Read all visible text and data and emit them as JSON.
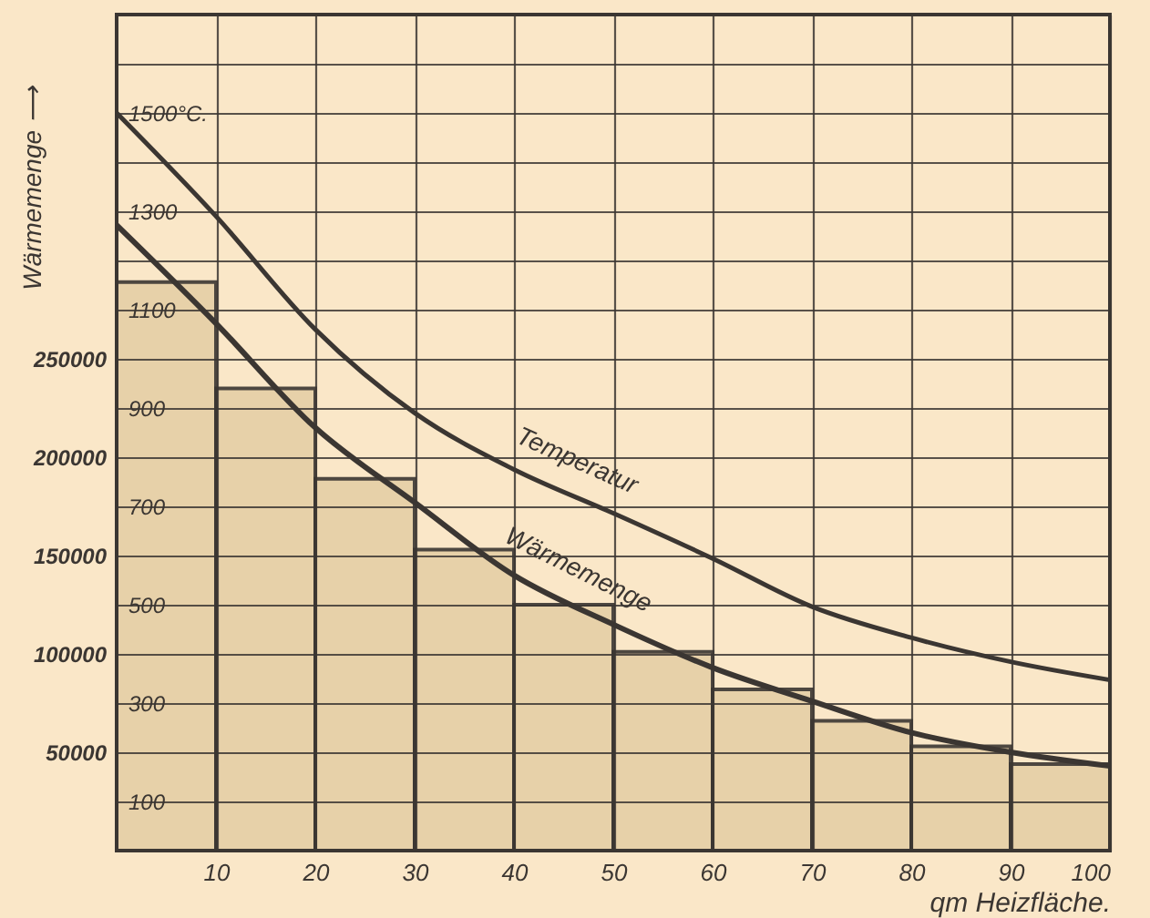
{
  "chart_data": {
    "type": "line",
    "xlabel": "qm Heizfläche.",
    "ylabel": "Wärmemenge ⟶",
    "xlim": [
      0,
      100
    ],
    "xticks": [
      10,
      20,
      30,
      40,
      50,
      60,
      70,
      80,
      90,
      100
    ],
    "ylim": [
      0,
      425000
    ],
    "yticks": [
      50000,
      100000,
      150000,
      200000,
      250000,
      {
        "value": 300000,
        "label": null
      },
      {
        "value": 350000,
        "label": null
      },
      {
        "value": 400000,
        "label": null
      }
    ],
    "y2lim": [
      0,
      1700
    ],
    "y2ticks": [
      100,
      300,
      500,
      700,
      900,
      1100,
      1300,
      {
        "value": 1500,
        "label": "1500°C."
      }
    ],
    "grid": true,
    "series": [
      {
        "type": "histogram",
        "color": "#e6cfa6",
        "bins": [
          0,
          10,
          20,
          30,
          40,
          50,
          60,
          70,
          80,
          90,
          100
        ],
        "values": [
          289000,
          235000,
          189000,
          153000,
          125000,
          101000,
          82000,
          66000,
          53000,
          44000
        ]
      },
      {
        "name": "Temperatur",
        "axis": "y2",
        "color": "#3b3632",
        "x": [
          0,
          10,
          20,
          30,
          40,
          50,
          60,
          70,
          80,
          90,
          100
        ],
        "values": [
          1500,
          1290,
          1060,
          890,
          775,
          686,
          594,
          496,
          433,
          384,
          347
        ]
      },
      {
        "name": "Wärmemenge",
        "color": "#3b3632",
        "x": [
          0,
          10,
          20,
          30,
          40,
          50,
          60,
          70,
          80,
          90,
          100
        ],
        "values": [
          318000,
          268000,
          215000,
          177000,
          140000,
          115000,
          93000,
          76000,
          60000,
          50000,
          43000
        ]
      }
    ]
  }
}
